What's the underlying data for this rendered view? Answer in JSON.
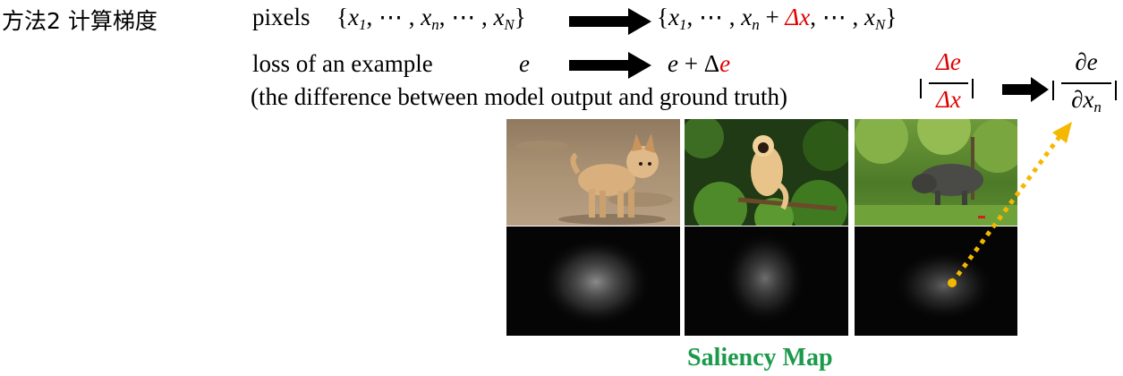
{
  "title": "方法2 计算梯度",
  "row1": {
    "label": "pixels",
    "input_prefix": "{",
    "input_x1": "x",
    "input_sub1": "1",
    "input_mid": ", ⋯ , ",
    "input_xn": "x",
    "input_subn": "n",
    "input_xN": "x",
    "input_subN": "N",
    "input_suffix": "}",
    "output_prefix": "{",
    "output_x1": "x",
    "output_sub1": "1",
    "output_mid": ", ⋯ , ",
    "output_xn": "x",
    "output_subn": "n",
    "output_plus": " + ",
    "output_delta": "Δx",
    "output_after": ", ⋯ , ",
    "output_xN": "x",
    "output_subN": "N",
    "output_suffix": "}"
  },
  "row2": {
    "label": "loss of an example",
    "symbol": "e",
    "result_e": "e",
    "result_plus": " + Δ",
    "result_de": "e",
    "note": "(the difference between model output and ground truth)"
  },
  "fraction_delta": {
    "numerator": "Δe",
    "denominator": "Δx"
  },
  "fraction_partial": {
    "numerator": "∂e",
    "denominator": "∂x",
    "denominator_sub": "n"
  },
  "images": [
    "dog photo",
    "monkey photo",
    "buffalo photo"
  ],
  "caption": "Saliency Map",
  "colors": {
    "red": "#e00000",
    "caption": "#1a9a4a",
    "pointer": "#f5b800"
  }
}
